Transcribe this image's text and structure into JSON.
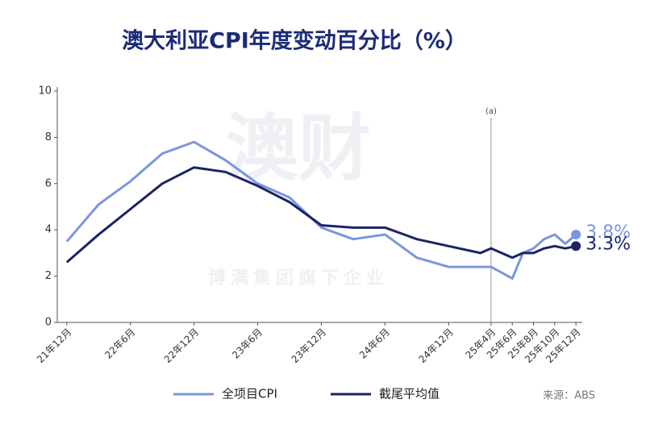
{
  "chart_data": {
    "type": "line",
    "title": "澳大利亚CPI年度变动百分比（%）",
    "watermark": [
      "澳财",
      "博满集团旗下企业"
    ],
    "source": "来源：ABS",
    "xlim": [
      -0.9,
      48.6
    ],
    "xticks": [
      {
        "value": 0,
        "label": "21年12月"
      },
      {
        "value": 6,
        "label": "22年6月"
      },
      {
        "value": 12,
        "label": "22年12月"
      },
      {
        "value": 18,
        "label": "23年6月"
      },
      {
        "value": 24,
        "label": "23年12月"
      },
      {
        "value": 30,
        "label": "24年6月"
      },
      {
        "value": 36,
        "label": "24年12月"
      },
      {
        "value": 40,
        "label": "25年4月"
      },
      {
        "value": 42,
        "label": "25年6月"
      },
      {
        "value": 44,
        "label": "25年8月"
      },
      {
        "value": 46,
        "label": "25年10月"
      },
      {
        "value": 48,
        "label": "25年12月"
      }
    ],
    "ylim": [
      0,
      10
    ],
    "yticks": [
      0,
      2,
      4,
      6,
      8,
      10
    ],
    "annotation": {
      "x": 40,
      "text": "(a)"
    },
    "x": [
      0,
      3,
      6,
      9,
      12,
      15,
      18,
      21,
      24,
      27,
      30,
      33,
      36,
      39,
      40,
      42,
      43,
      44,
      45,
      46,
      47,
      48
    ],
    "series": [
      {
        "name": "全项目CPI",
        "color": "#7b96dc",
        "end_label": "3.8%",
        "values": [
          3.5,
          5.1,
          6.1,
          7.3,
          7.8,
          7.0,
          6.0,
          5.4,
          4.1,
          3.6,
          3.8,
          2.8,
          2.4,
          2.4,
          2.4,
          1.9,
          3.0,
          3.2,
          3.6,
          3.8,
          3.4,
          3.8
        ]
      },
      {
        "name": "截尾平均值",
        "color": "#1b2366",
        "end_label": "3.3%",
        "values": [
          2.6,
          3.8,
          4.9,
          6.0,
          6.7,
          6.5,
          5.9,
          5.2,
          4.2,
          4.1,
          4.1,
          3.6,
          3.3,
          3.0,
          3.2,
          2.8,
          3.0,
          3.0,
          3.2,
          3.3,
          3.2,
          3.3
        ]
      }
    ]
  }
}
